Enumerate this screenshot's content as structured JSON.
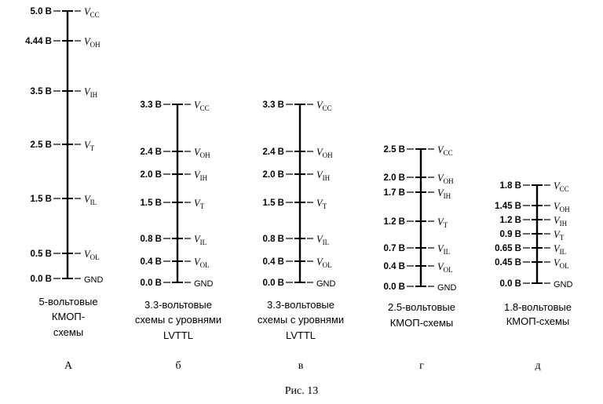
{
  "figure_caption": "Рис. 13",
  "columns": [
    {
      "letter": "А",
      "caption": [
        "5-вольтовые",
        "КМОП-",
        "схемы"
      ],
      "levels": [
        {
          "value": "5.0 В",
          "signal": "V",
          "sub": "CC"
        },
        {
          "value": "4.44 В",
          "signal": "V",
          "sub": "OH"
        },
        {
          "value": "3.5 В",
          "signal": "V",
          "sub": "IH"
        },
        {
          "value": "2.5 В",
          "signal": "V",
          "sub": "T"
        },
        {
          "value": "1.5 В",
          "signal": "V",
          "sub": "IL"
        },
        {
          "value": "0.5 В",
          "signal": "V",
          "sub": "OL"
        },
        {
          "value": "0.0 В",
          "signal": "GND",
          "sub": ""
        }
      ]
    },
    {
      "letter": "б",
      "caption": [
        "3.3-вольтовые",
        "схемы с уровнями",
        "LVTTL"
      ],
      "levels": [
        {
          "value": "3.3 В",
          "signal": "V",
          "sub": "CC"
        },
        {
          "value": "2.4 В",
          "signal": "V",
          "sub": "OH"
        },
        {
          "value": "2.0 В",
          "signal": "V",
          "sub": "IH"
        },
        {
          "value": "1.5 В",
          "signal": "V",
          "sub": "T"
        },
        {
          "value": "0.8 В",
          "signal": "V",
          "sub": "IL"
        },
        {
          "value": "0.4 В",
          "signal": "V",
          "sub": "OL"
        },
        {
          "value": "0.0 В",
          "signal": "GND",
          "sub": ""
        }
      ]
    },
    {
      "letter": "в",
      "caption": [
        "3.3-вольтовые",
        "схемы с уровнями",
        "LVTTL"
      ],
      "levels": [
        {
          "value": "3.3 В",
          "signal": "V",
          "sub": "CC"
        },
        {
          "value": "2.4 В",
          "signal": "V",
          "sub": "OH"
        },
        {
          "value": "2.0 В",
          "signal": "V",
          "sub": "IH"
        },
        {
          "value": "1.5 В",
          "signal": "V",
          "sub": "T"
        },
        {
          "value": "0.8 В",
          "signal": "V",
          "sub": "IL"
        },
        {
          "value": "0.4 В",
          "signal": "V",
          "sub": "OL"
        },
        {
          "value": "0.0 В",
          "signal": "GND",
          "sub": ""
        }
      ]
    },
    {
      "letter": "г",
      "caption": [
        "2.5-вольтовые",
        "КМОП-схемы"
      ],
      "levels": [
        {
          "value": "2.5 В",
          "signal": "V",
          "sub": "CC"
        },
        {
          "value": "2.0 В",
          "signal": "V",
          "sub": "OH"
        },
        {
          "value": "1.7 В",
          "signal": "V",
          "sub": "IH"
        },
        {
          "value": "1.2 В",
          "signal": "V",
          "sub": "T"
        },
        {
          "value": "0.7 В",
          "signal": "V",
          "sub": "IL"
        },
        {
          "value": "0.4 В",
          "signal": "V",
          "sub": "OL"
        },
        {
          "value": "0.0 В",
          "signal": "GND",
          "sub": ""
        }
      ]
    },
    {
      "letter": "д",
      "caption": [
        "1.8-вольтовые",
        "КМОП-схемы"
      ],
      "levels": [
        {
          "value": "1.8 В",
          "signal": "V",
          "sub": "CC"
        },
        {
          "value": "1.45 В",
          "signal": "V",
          "sub": "OH"
        },
        {
          "value": "1.2 В",
          "signal": "V",
          "sub": "IH"
        },
        {
          "value": "0.9 В",
          "signal": "V",
          "sub": "T"
        },
        {
          "value": "0.65 В",
          "signal": "V",
          "sub": "IL"
        },
        {
          "value": "0.45 В",
          "signal": "V",
          "sub": "OL"
        },
        {
          "value": "0.0 В",
          "signal": "GND",
          "sub": ""
        }
      ]
    }
  ]
}
